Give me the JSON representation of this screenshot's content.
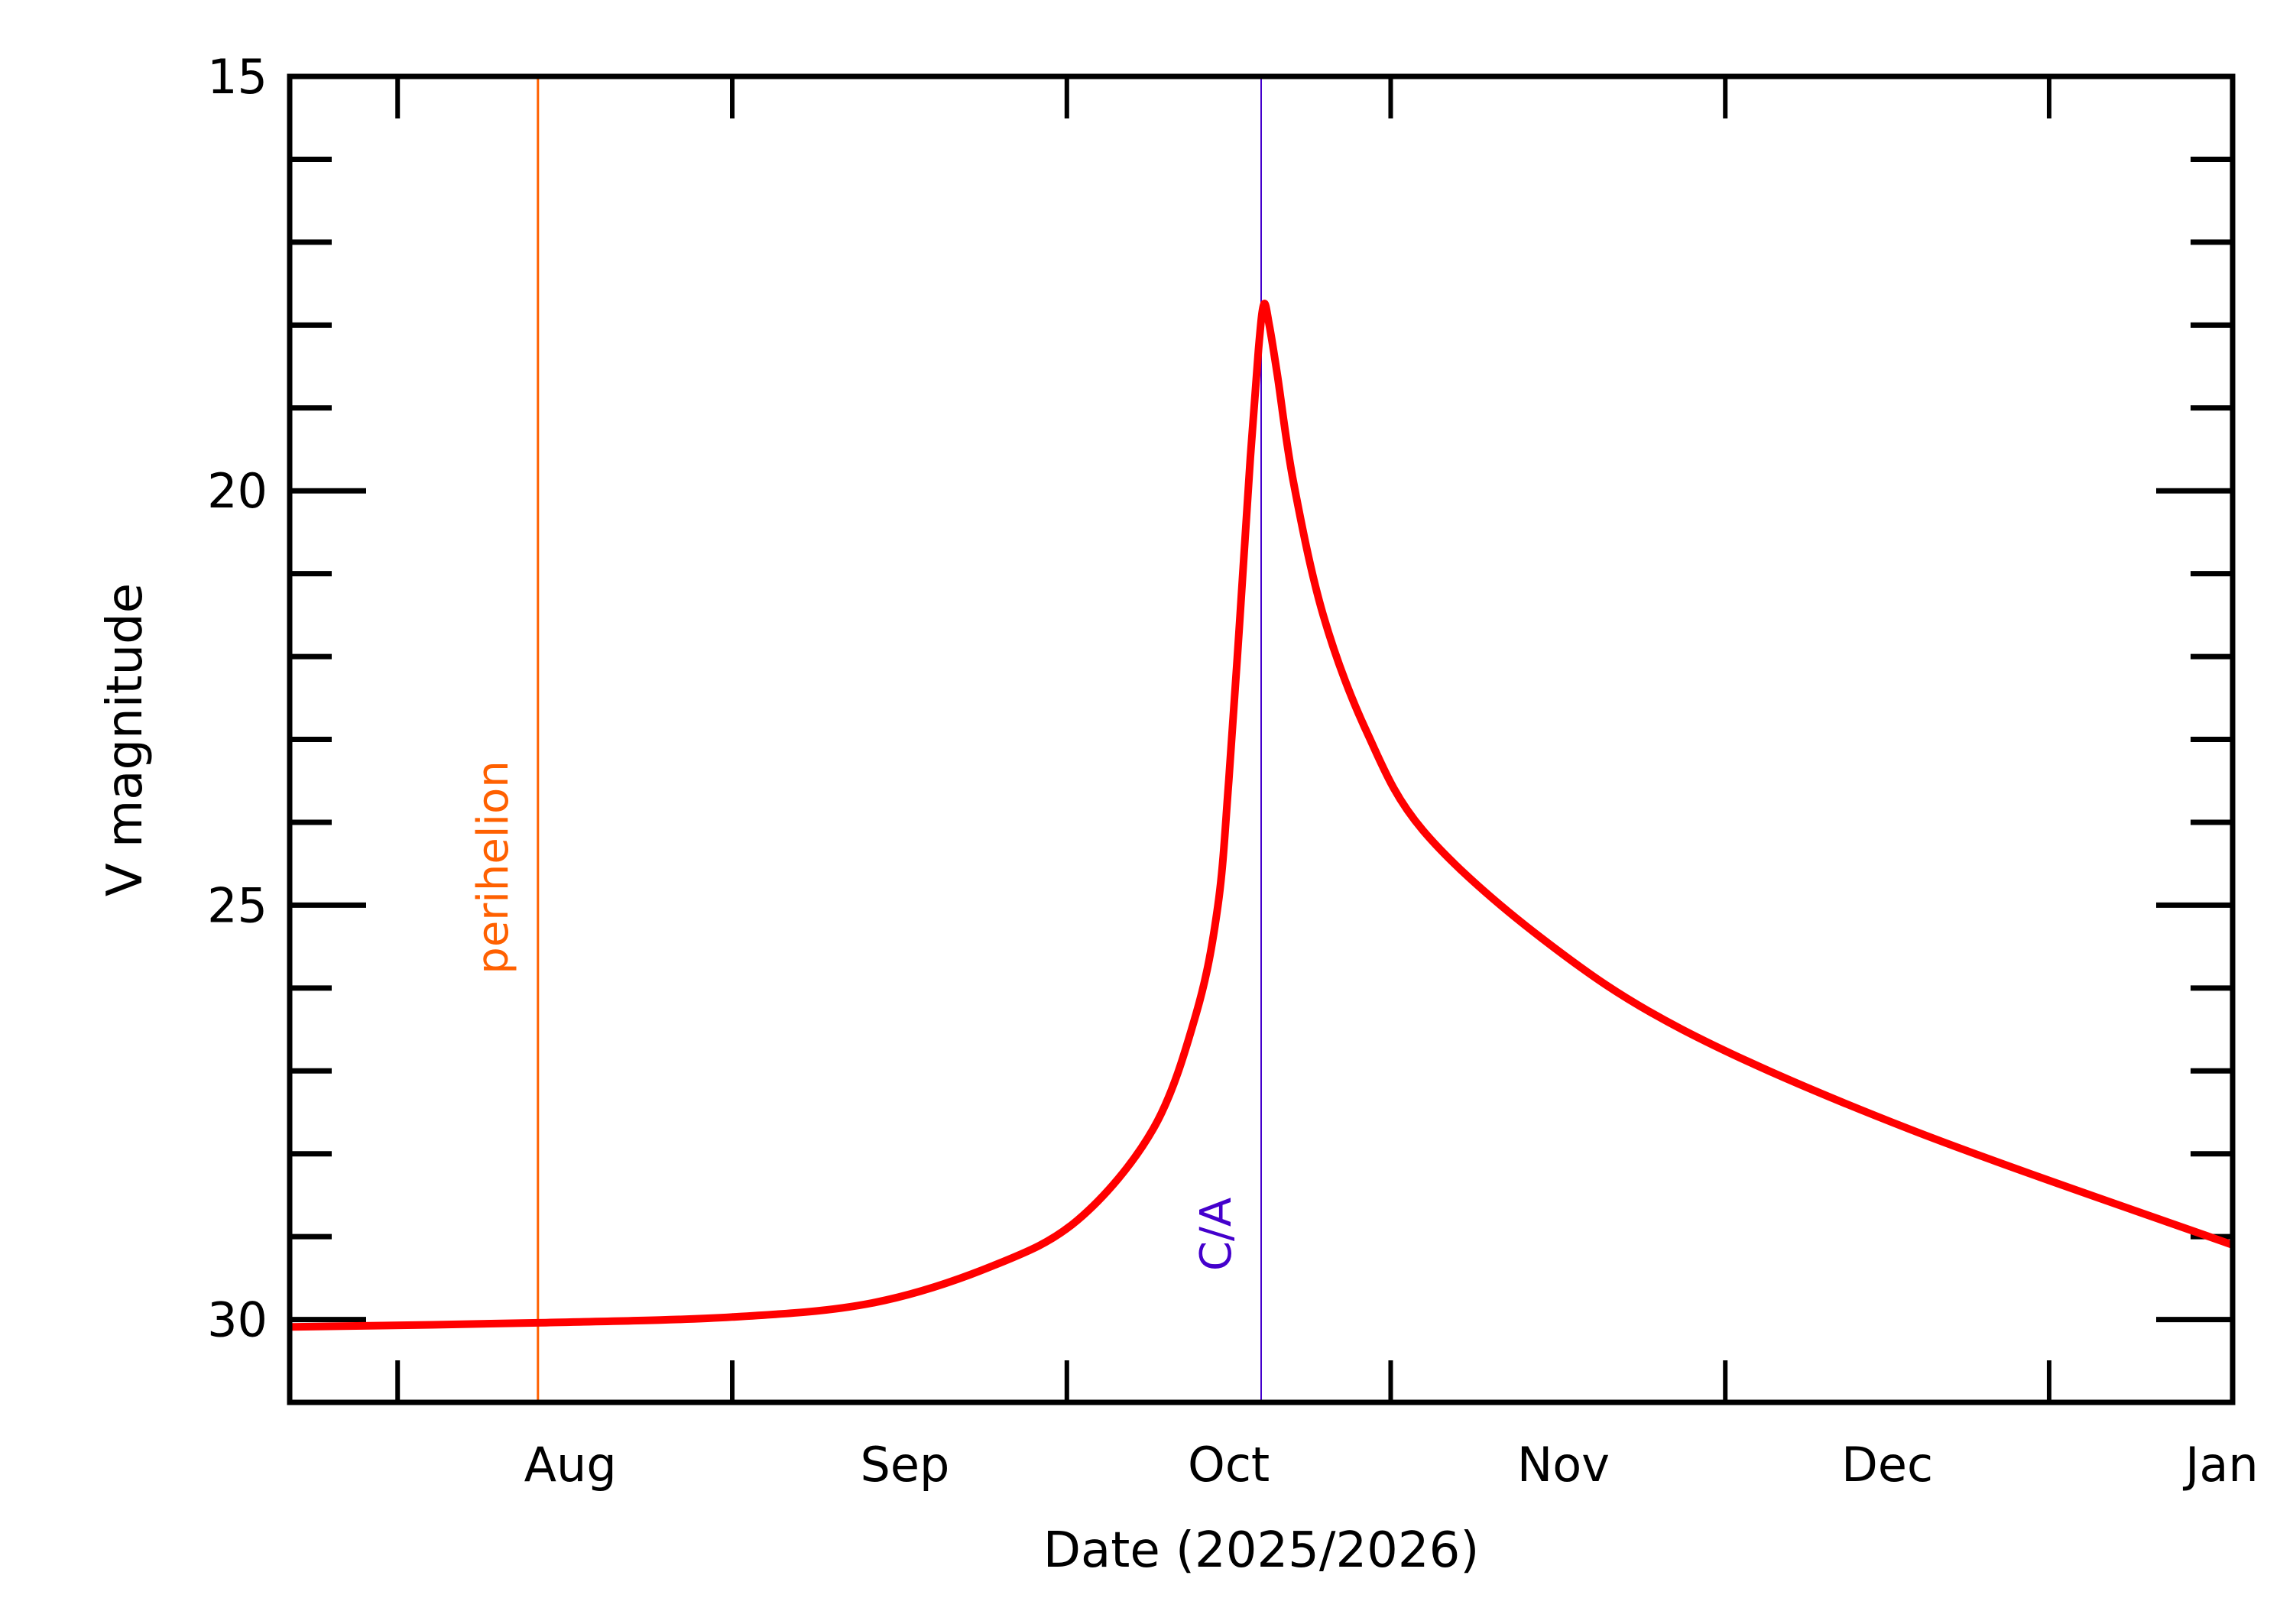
{
  "chart_data": {
    "type": "line",
    "xlabel": "Date (2025/2026)",
    "ylabel": "V magnitude",
    "xlim": [
      "2025-07-06",
      "2026-01-02"
    ],
    "ylim": [
      31,
      15
    ],
    "y_inverted": true,
    "grid": false,
    "x_tick_labels": [
      {
        "label": "Aug",
        "date": "2025-08-01"
      },
      {
        "label": "Sep",
        "date": "2025-09-01"
      },
      {
        "label": "Oct",
        "date": "2025-10-01"
      },
      {
        "label": "Nov",
        "date": "2025-11-01"
      },
      {
        "label": "Dec",
        "date": "2025-12-01"
      },
      {
        "label": "Jan",
        "date": "2026-01-01"
      }
    ],
    "y_tick_labels": [
      "15",
      "20",
      "25",
      "30"
    ],
    "y_major_ticks": [
      15,
      20,
      25,
      30
    ],
    "y_minor_step": 1,
    "series": [
      {
        "color": "#ff0000",
        "x": [
          "2025-07-06",
          "2025-07-29",
          "2025-08-16",
          "2025-08-29",
          "2025-09-09",
          "2025-09-17",
          "2025-09-24",
          "2025-09-28",
          "2025-09-30",
          "2025-10-01",
          "2025-10-02",
          "2025-10-03",
          "2025-10-03T18:00",
          "2025-10-04T06:00",
          "2025-10-04T18:00",
          "2025-10-05T12:00",
          "2025-10-07",
          "2025-10-09T18:00",
          "2025-10-13T18:00",
          "2025-10-19",
          "2025-10-30",
          "2025-11-12",
          "2025-12-03",
          "2026-01-02"
        ],
        "y": [
          30.09,
          30.04,
          29.97,
          29.8,
          29.36,
          28.8,
          27.7,
          26.3,
          25.0,
          23.5,
          21.6,
          19.6,
          18.3,
          17.75,
          18.0,
          18.6,
          19.9,
          21.5,
          22.9,
          24.1,
          25.4,
          26.5,
          27.7,
          29.1
        ]
      }
    ],
    "annotations": [
      {
        "label": "perihelion",
        "date": "2025-07-29",
        "color": "#ff6000"
      },
      {
        "label": "C/A",
        "date": "2025-10-04",
        "color": "#4400cc"
      }
    ]
  }
}
